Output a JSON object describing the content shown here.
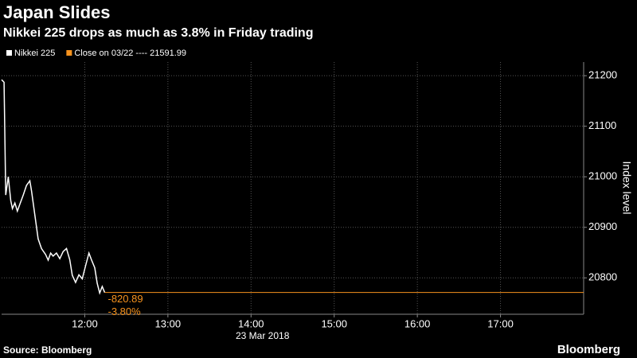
{
  "chart_data": {
    "type": "line",
    "title": "Japan Slides",
    "subtitle": "Nikkei 225 drops as much as 3.8% in Friday trading",
    "series": [
      {
        "name": "Nikkei 225",
        "color": "#ffffff",
        "x": [
          11.0,
          11.03,
          11.05,
          11.08,
          11.11,
          11.13,
          11.16,
          11.19,
          11.22,
          11.26,
          11.3,
          11.34,
          11.36,
          11.4,
          11.44,
          11.48,
          11.53,
          11.56,
          11.59,
          11.62,
          11.66,
          11.7,
          11.74,
          11.78,
          11.82,
          11.85,
          11.89,
          11.93,
          11.97,
          12.01,
          12.05,
          12.08,
          12.12,
          12.15,
          12.18,
          12.21,
          12.24
        ],
        "values": [
          21192,
          21187,
          20964,
          21000,
          20953,
          20937,
          20948,
          20932,
          20946,
          20964,
          20983,
          20992,
          20972,
          20924,
          20877,
          20858,
          20846,
          20835,
          20849,
          20843,
          20849,
          20838,
          20852,
          20858,
          20836,
          20805,
          20791,
          20806,
          20798,
          20824,
          20849,
          20836,
          20820,
          20789,
          20770,
          20783,
          20771
        ]
      }
    ],
    "reference": {
      "name": "Close on 03/22 ---- 21591.99",
      "color": "#f7931e"
    },
    "annotations": [
      "-820.89",
      "-3.80%"
    ],
    "xlim": [
      11,
      18
    ],
    "xticks": [
      {
        "value": 12,
        "label": "12:00"
      },
      {
        "value": 13,
        "label": "13:00"
      },
      {
        "value": 14,
        "label": "14:00"
      },
      {
        "value": 15,
        "label": "15:00"
      },
      {
        "value": 16,
        "label": "16:00"
      },
      {
        "value": 17,
        "label": "17:00"
      }
    ],
    "xlabel": "23 Mar 2018",
    "ylim": [
      20728,
      21227
    ],
    "yticks": [
      20800,
      20900,
      21000,
      21100,
      21200
    ],
    "ylabel": "Index level",
    "grid": true,
    "source": "Source: Bloomberg",
    "brand": "Bloomberg"
  }
}
